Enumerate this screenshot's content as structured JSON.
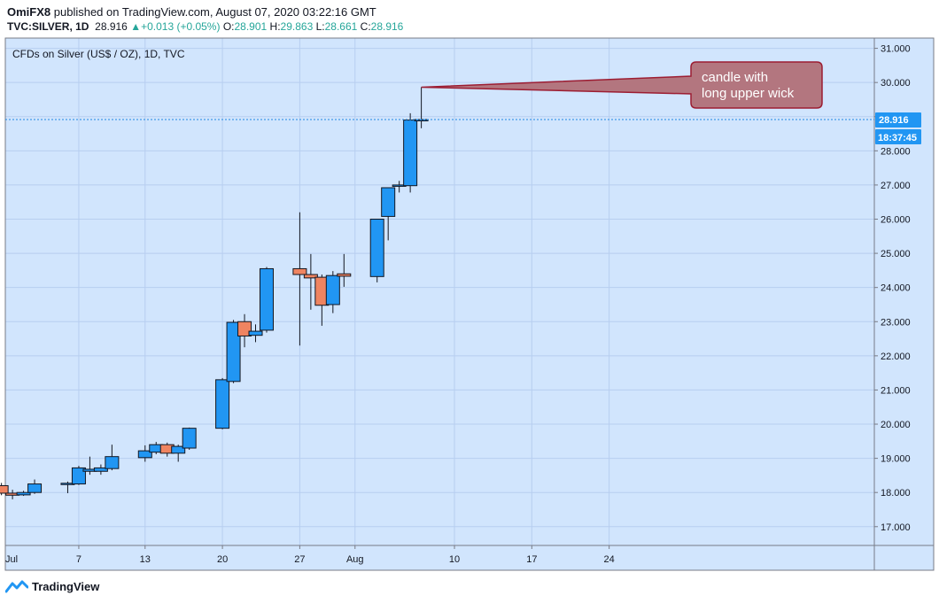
{
  "header": {
    "publisher": "OmiFX8",
    "published_text": "published on TradingView.com, August 07, 2020 03:22:16 GMT",
    "symbol": "TVC:SILVER, 1D",
    "last": "28.916",
    "change_arrow": "▲",
    "change": "+0.013 (+0.05%)",
    "o_label": "O:",
    "o_value": "28.901",
    "h_label": "H:",
    "h_value": "29.863",
    "l_label": "L:",
    "l_value": "28.661",
    "c_label": "C:",
    "c_value": "28.916"
  },
  "footer": {
    "brand": "TradingView",
    "logo_icon": "tradingview-logo-icon"
  },
  "chart_data": {
    "type": "candlestick",
    "title": "CFDs on Silver (US$ / OZ), 1D, TVC",
    "ylim": [
      16.45,
      31.3
    ],
    "yticks": [
      "17.000",
      "18.000",
      "19.000",
      "20.000",
      "21.000",
      "22.000",
      "23.000",
      "24.000",
      "25.000",
      "26.000",
      "27.000",
      "28.000",
      "29.000",
      "30.000",
      "31.000"
    ],
    "xlim": [
      0.35,
      79
    ],
    "xticks": [
      {
        "day": 0.35,
        "label": "Jul"
      },
      {
        "day": 7,
        "label": "7"
      },
      {
        "day": 13,
        "label": "13"
      },
      {
        "day": 20,
        "label": "20"
      },
      {
        "day": 27,
        "label": "27"
      },
      {
        "day": 32,
        "label": "Aug"
      },
      {
        "day": 41,
        "label": "10"
      },
      {
        "day": 48,
        "label": "17"
      },
      {
        "day": 55,
        "label": "24"
      }
    ],
    "candles": [
      {
        "date": "2020-06-30",
        "day": 0,
        "o": 18.2,
        "h": 18.28,
        "l": 17.92,
        "c": 17.98
      },
      {
        "date": "2020-07-01",
        "day": 1,
        "o": 17.98,
        "h": 18.08,
        "l": 17.8,
        "c": 17.92
      },
      {
        "date": "2020-07-02",
        "day": 2,
        "o": 17.93,
        "h": 18.05,
        "l": 17.9,
        "c": 18.0
      },
      {
        "date": "2020-07-03",
        "day": 3,
        "o": 18.0,
        "h": 18.38,
        "l": 17.96,
        "c": 18.25
      },
      {
        "date": "2020-07-06",
        "day": 6,
        "o": 18.25,
        "h": 18.32,
        "l": 17.98,
        "c": 18.27
      },
      {
        "date": "2020-07-07",
        "day": 7,
        "o": 18.25,
        "h": 18.78,
        "l": 18.22,
        "c": 18.72
      },
      {
        "date": "2020-07-08",
        "day": 8,
        "o": 18.62,
        "h": 19.05,
        "l": 18.52,
        "c": 18.68
      },
      {
        "date": "2020-07-09",
        "day": 9,
        "o": 18.62,
        "h": 18.82,
        "l": 18.52,
        "c": 18.72
      },
      {
        "date": "2020-07-10",
        "day": 10,
        "o": 18.7,
        "h": 19.4,
        "l": 18.65,
        "c": 19.05
      },
      {
        "date": "2020-07-13",
        "day": 13,
        "o": 19.02,
        "h": 19.38,
        "l": 18.9,
        "c": 19.22
      },
      {
        "date": "2020-07-14",
        "day": 14,
        "o": 19.18,
        "h": 19.48,
        "l": 19.12,
        "c": 19.4
      },
      {
        "date": "2020-07-15",
        "day": 15,
        "o": 19.4,
        "h": 19.46,
        "l": 19.05,
        "c": 19.15
      },
      {
        "date": "2020-07-16",
        "day": 16,
        "o": 19.15,
        "h": 19.4,
        "l": 18.9,
        "c": 19.35
      },
      {
        "date": "2020-07-17",
        "day": 17,
        "o": 19.3,
        "h": 19.9,
        "l": 19.25,
        "c": 19.88
      },
      {
        "date": "2020-07-20",
        "day": 20,
        "o": 19.88,
        "h": 21.35,
        "l": 19.85,
        "c": 21.3
      },
      {
        "date": "2020-07-21",
        "day": 21,
        "o": 21.25,
        "h": 23.05,
        "l": 21.2,
        "c": 22.98
      },
      {
        "date": "2020-07-22",
        "day": 22,
        "o": 23.0,
        "h": 23.22,
        "l": 22.25,
        "c": 22.58
      },
      {
        "date": "2020-07-23",
        "day": 23,
        "o": 22.6,
        "h": 22.92,
        "l": 22.4,
        "c": 22.72
      },
      {
        "date": "2020-07-24",
        "day": 24,
        "o": 22.75,
        "h": 24.6,
        "l": 22.68,
        "c": 24.55
      },
      {
        "date": "2020-07-27",
        "day": 27,
        "o": 24.55,
        "h": 26.2,
        "l": 22.3,
        "c": 24.38
      },
      {
        "date": "2020-07-28",
        "day": 28,
        "o": 24.38,
        "h": 24.98,
        "l": 23.35,
        "c": 24.28
      },
      {
        "date": "2020-07-29",
        "day": 29,
        "o": 24.3,
        "h": 24.38,
        "l": 22.88,
        "c": 23.48
      },
      {
        "date": "2020-07-30",
        "day": 30,
        "o": 23.5,
        "h": 24.48,
        "l": 23.25,
        "c": 24.35
      },
      {
        "date": "2020-07-31",
        "day": 31,
        "o": 24.4,
        "h": 24.98,
        "l": 24.02,
        "c": 24.33
      },
      {
        "date": "2020-08-03",
        "day": 34,
        "o": 24.32,
        "h": 26.0,
        "l": 24.15,
        "c": 26.0
      },
      {
        "date": "2020-08-04",
        "day": 35,
        "o": 26.08,
        "h": 26.92,
        "l": 25.38,
        "c": 26.92
      },
      {
        "date": "2020-08-05",
        "day": 36,
        "o": 26.98,
        "h": 27.12,
        "l": 26.78,
        "c": 27.0
      },
      {
        "date": "2020-08-06",
        "day": 37,
        "o": 26.98,
        "h": 29.1,
        "l": 26.78,
        "c": 28.9
      },
      {
        "date": "2020-08-07",
        "day": 38,
        "o": 28.901,
        "h": 29.863,
        "l": 28.661,
        "c": 28.916
      }
    ],
    "last_price_label": "28.916",
    "countdown_label": "18:37:45",
    "annotation": {
      "line1": "candle with",
      "line2": "long upper wick",
      "target_date": "2020-08-07",
      "target_price": 29.863
    },
    "colors": {
      "up": "#2196f3",
      "down": "#ef8461",
      "border": "#131722",
      "background": "#d1e5fd",
      "grid": "#b7cef0",
      "price_line": "#1e88e5",
      "price_label_bg": "#2196f3",
      "annotation_fill": "#b3767f",
      "annotation_stroke": "#9c1d32"
    }
  }
}
